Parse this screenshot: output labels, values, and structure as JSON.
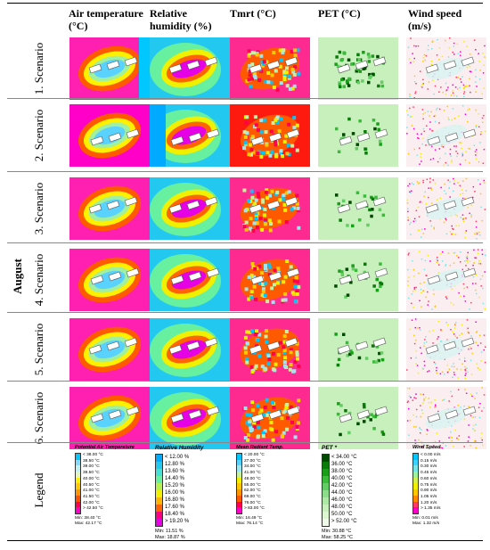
{
  "month": "August",
  "columns": [
    {
      "key": "air",
      "label": "Air temperature\n(°C)"
    },
    {
      "key": "rh",
      "label": "Relative\nhumidity (%)"
    },
    {
      "key": "tmrt",
      "label": "Tmrt (°C)"
    },
    {
      "key": "pet",
      "label": "PET (°C)"
    },
    {
      "key": "wind",
      "label": "Wind speed\n(m/s)"
    }
  ],
  "rows": [
    "1. Scenario",
    "2. Scenario",
    "3. Scenario",
    "4. Scenario",
    "5. Scenario",
    "6. Scenario"
  ],
  "legend_label": "Legend",
  "legends": [
    {
      "title": "Potential Air Temperature",
      "labels": [
        "< 38.00 °C",
        "38.50 °C",
        "39.00 °C",
        "39.50 °C",
        "40.00 °C",
        "40.50 °C",
        "41.00 °C",
        "41.50 °C",
        "42.00 °C",
        "> 42.50 °C"
      ],
      "colors": [
        "#00c8ff",
        "#7fdcff",
        "#bff0f0",
        "#e0f5c0",
        "#fff000",
        "#ffc800",
        "#ff9600",
        "#ff5000",
        "#ff0050",
        "#ff00c8"
      ],
      "min": "Min: 38.40 °C",
      "max": "Max: 42.17 °C"
    },
    {
      "title": "Relative Humidity",
      "labels": [
        "< 12.00 %",
        "12.80 %",
        "13.60 %",
        "14.40 %",
        "15.20 %",
        "16.00 %",
        "16.80 %",
        "17.60 %",
        "18.40 %",
        "> 19.20 %"
      ],
      "colors": [
        "#00aaff",
        "#22c8f0",
        "#44e0d8",
        "#66f0a0",
        "#b4f050",
        "#f0f000",
        "#ffb400",
        "#ff6400",
        "#ff0080",
        "#e600e6"
      ],
      "min": "Min: 11.51 %",
      "max": "Max: 18.87 %"
    },
    {
      "title": "Mean Radiant Temp.",
      "labels": [
        "< 20.00 °C",
        "27.00 °C",
        "34.00 °C",
        "41.00 °C",
        "48.00 °C",
        "55.00 °C",
        "62.00 °C",
        "69.00 °C",
        "76.00 °C",
        "> 83.00 °C"
      ],
      "colors": [
        "#00c8ff",
        "#5ad2ff",
        "#a0e6f0",
        "#c8f0a0",
        "#f0f000",
        "#ffc800",
        "#ff9600",
        "#ff5a00",
        "#ff0050",
        "#ff00c8"
      ],
      "min": "Min: 16.49 °C",
      "max": "Max: 76.14 °C"
    },
    {
      "title": "PET *",
      "labels": [
        "< 34.00 °C",
        "36.00 °C",
        "38.00 °C",
        "40.00 °C",
        "42.00 °C",
        "44.00 °C",
        "46.00 °C",
        "48.00 °C",
        "50.00 °C",
        "> 52.00 °C"
      ],
      "colors": [
        "#004a00",
        "#0a7a0a",
        "#1a9e1a",
        "#3cba3c",
        "#64cc64",
        "#8cdc8c",
        "#aee8a6",
        "#c8f0bc",
        "#ddf6d2",
        "#effbe8"
      ],
      "min": "Min: 30.88 °C",
      "max": "Max: 58.25 °C"
    },
    {
      "title": "Wind Speed",
      "labels": [
        "< 0.00 m/s",
        "0.15 m/s",
        "0.30 m/s",
        "0.45 m/s",
        "0.60 m/s",
        "0.75 m/s",
        "0.90 m/s",
        "1.05 m/s",
        "1.20 m/s",
        "> 1.35 m/s"
      ],
      "colors": [
        "#00c8ff",
        "#3cd2ff",
        "#78e6e6",
        "#a0f0a0",
        "#d2f050",
        "#f0f000",
        "#ffc800",
        "#ff8c00",
        "#ff3c64",
        "#ff00c8"
      ],
      "min": "Min: 0.01 m/s",
      "max": "Max: 1.32 m/s"
    }
  ]
}
